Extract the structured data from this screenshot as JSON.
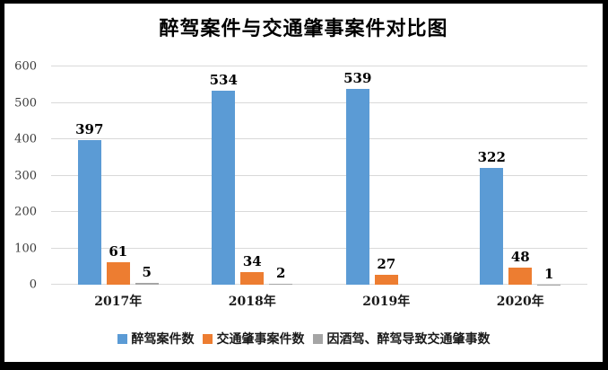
{
  "title": "醉驾案件与交通肇事案件对比图",
  "colors": {
    "frame": "#000000",
    "background": "#ffffff",
    "gridline": "#d9d9d9",
    "title_text": "#000000",
    "tick_text": "#3b3b3b",
    "series_blue": "#5b9bd5",
    "series_orange": "#ed7d31",
    "series_gray": "#a5a5a5"
  },
  "chart_data": {
    "type": "bar",
    "title": "醉驾案件与交通肇事案件对比图",
    "categories": [
      "2017年",
      "2018年",
      "2019年",
      "2020年"
    ],
    "series": [
      {
        "name": "醉驾案件数",
        "color": "#5b9bd5",
        "values": [
          397,
          534,
          539,
          322
        ],
        "labels": [
          "397",
          "534",
          "539",
          "322"
        ]
      },
      {
        "name": "交通肇事案件数",
        "color": "#ed7d31",
        "values": [
          61,
          34,
          27,
          48
        ],
        "labels": [
          "61",
          "34",
          "27",
          "48"
        ]
      },
      {
        "name": "因酒驾、醉驾导致交通肇事数",
        "color": "#a5a5a5",
        "values": [
          5,
          2,
          0,
          1
        ],
        "labels": [
          "5",
          "2",
          "",
          "1"
        ]
      }
    ],
    "xlabel": "",
    "ylabel": "",
    "ylim": [
      0,
      600
    ],
    "yticks": [
      0,
      100,
      200,
      300,
      400,
      500,
      600
    ],
    "grid": true,
    "legend_position": "bottom"
  }
}
